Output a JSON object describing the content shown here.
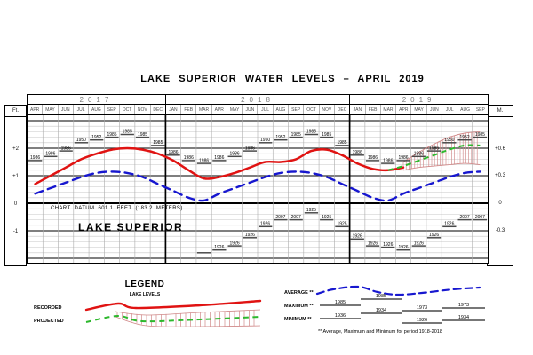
{
  "title": "LAKE SUPERIOR WATER LEVELS – APRIL 2019",
  "axes": {
    "left_unit": "Ft.",
    "right_unit": "M.",
    "left_ticks": [
      {
        "label": "+2",
        "ft": 2
      },
      {
        "label": "+1",
        "ft": 1
      },
      {
        "label": "0",
        "ft": 0
      },
      {
        "label": "-1",
        "ft": -1
      }
    ],
    "right_ticks": [
      {
        "label": "+0.6",
        "m": 0.6
      },
      {
        "label": "+0.3",
        "m": 0.3
      },
      {
        "label": "0",
        "m": 0
      },
      {
        "label": "-0.3",
        "m": -0.3
      }
    ]
  },
  "header": {
    "years": [
      {
        "label": "2017",
        "months": [
          "APR",
          "MAY",
          "JUN",
          "JUL",
          "AUG",
          "SEP",
          "OCT",
          "NOV",
          "DEC"
        ]
      },
      {
        "label": "2018",
        "months": [
          "JAN",
          "FEB",
          "MAR",
          "APR",
          "MAY",
          "JUN",
          "JUL",
          "AUG",
          "SEP",
          "OCT",
          "NOV",
          "DEC"
        ]
      },
      {
        "label": "2019",
        "months": [
          "JAN",
          "FEB",
          "MAR",
          "APR",
          "MAY",
          "JUN",
          "JUL",
          "AUG",
          "SEP"
        ]
      }
    ]
  },
  "annotations": {
    "chart_datum": "CHART DATUM  601.1 FEET (183.2 METERS)",
    "lake_name": "LAKE SUPERIOR"
  },
  "legend": {
    "title": "LEGEND",
    "subtitle": "LAKE LEVELS",
    "recorded_label": "RECORDED",
    "projected_label": "PROJECTED",
    "average_label": "AVERAGE **",
    "maximum_label": "MAXIMUM **",
    "minimum_label": "MINIMUM **",
    "maximum_years": [
      "1985",
      "1985",
      "1973",
      "1973"
    ],
    "minimum_years": [
      "1936",
      "1934",
      "1926",
      "1934"
    ],
    "footnote": "** Average, Maximum and Minimum for period 1918-2018"
  },
  "colors": {
    "recorded": "#e01312",
    "average": "#1717cf",
    "projected": "#2db82d",
    "hatch": "#d08888",
    "steps": "#4a4a4a"
  },
  "chart_data": {
    "type": "line",
    "title": "LAKE SUPERIOR WATER LEVELS – APRIL 2019",
    "ylabel_left": "Ft.",
    "ylabel_right": "M.",
    "ylim_ft": [
      -2.2,
      3.2
    ],
    "categories": [
      "APR 2017",
      "MAY 2017",
      "JUN 2017",
      "JUL 2017",
      "AUG 2017",
      "SEP 2017",
      "OCT 2017",
      "NOV 2017",
      "DEC 2017",
      "JAN 2018",
      "FEB 2018",
      "MAR 2018",
      "APR 2018",
      "MAY 2018",
      "JUN 2018",
      "JUL 2018",
      "AUG 2018",
      "SEP 2018",
      "OCT 2018",
      "NOV 2018",
      "DEC 2018",
      "JAN 2019",
      "FEB 2019",
      "MAR 2019",
      "APR 2019",
      "MAY 2019",
      "JUN 2019",
      "JUL 2019",
      "AUG 2019",
      "SEP 2019"
    ],
    "series": [
      {
        "name": "RECORDED",
        "color_key": "recorded",
        "values": [
          0.7,
          1.0,
          1.3,
          1.6,
          1.8,
          1.95,
          2.0,
          1.95,
          1.8,
          1.55,
          1.2,
          0.9,
          0.95,
          1.1,
          1.3,
          1.5,
          1.5,
          1.6,
          1.9,
          1.95,
          1.75,
          1.45,
          1.25,
          1.2,
          1.3,
          null,
          null,
          null,
          null,
          null
        ]
      },
      {
        "name": "AVERAGE",
        "color_key": "average",
        "values": [
          0.35,
          0.55,
          0.75,
          0.95,
          1.1,
          1.15,
          1.1,
          0.95,
          0.7,
          0.45,
          0.2,
          0.1,
          0.35,
          0.55,
          0.75,
          0.95,
          1.1,
          1.15,
          1.1,
          0.95,
          0.7,
          0.45,
          0.2,
          0.1,
          0.35,
          0.55,
          0.75,
          0.95,
          1.1,
          1.15
        ]
      },
      {
        "name": "PROJECTED",
        "color_key": "projected",
        "values": [
          null,
          null,
          null,
          null,
          null,
          null,
          null,
          null,
          null,
          null,
          null,
          null,
          null,
          null,
          null,
          null,
          null,
          null,
          null,
          null,
          null,
          null,
          null,
          1.2,
          1.35,
          1.55,
          1.75,
          1.95,
          2.1,
          2.1
        ]
      }
    ],
    "projection_band": {
      "start_index": 24,
      "upper": [
        1.5,
        1.85,
        2.15,
        2.4,
        2.55,
        2.6
      ],
      "lower": [
        1.2,
        1.3,
        1.35,
        1.4,
        1.45,
        1.4
      ]
    },
    "max_steps": [
      {
        "year": "1986",
        "ft": 1.55
      },
      {
        "year": "1986",
        "ft": 1.7
      },
      {
        "year": "1986",
        "ft": 1.9
      },
      {
        "year": "1950",
        "ft": 2.2
      },
      {
        "year": "1952",
        "ft": 2.3
      },
      {
        "year": "1985",
        "ft": 2.4
      },
      {
        "year": "1985",
        "ft": 2.5
      },
      {
        "year": "1985",
        "ft": 2.4
      },
      {
        "year": "1985",
        "ft": 2.1
      },
      {
        "year": "1986",
        "ft": 1.75
      },
      {
        "year": "1986",
        "ft": 1.55
      },
      {
        "year": "1986",
        "ft": 1.45
      },
      {
        "year": "1986",
        "ft": 1.55
      },
      {
        "year": "1986",
        "ft": 1.7
      },
      {
        "year": "1986",
        "ft": 1.9
      },
      {
        "year": "1950",
        "ft": 2.2
      },
      {
        "year": "1952",
        "ft": 2.3
      },
      {
        "year": "1985",
        "ft": 2.4
      },
      {
        "year": "1985",
        "ft": 2.5
      },
      {
        "year": "1985",
        "ft": 2.4
      },
      {
        "year": "1985",
        "ft": 2.1
      },
      {
        "year": "1986",
        "ft": 1.75
      },
      {
        "year": "1986",
        "ft": 1.55
      },
      {
        "year": "1986",
        "ft": 1.45
      },
      {
        "year": "1986",
        "ft": 1.55
      },
      {
        "year": "1986",
        "ft": 1.7
      },
      {
        "year": "1986",
        "ft": 1.9
      },
      {
        "year": "1950",
        "ft": 2.2
      },
      {
        "year": "1952",
        "ft": 2.3
      },
      {
        "year": "1985",
        "ft": 2.4
      }
    ],
    "min_steps": [
      null,
      null,
      null,
      null,
      null,
      null,
      null,
      null,
      null,
      null,
      null,
      {
        "year": "",
        "ft": -1.8
      },
      {
        "year": "1926",
        "ft": -1.7
      },
      {
        "year": "1926",
        "ft": -1.55
      },
      {
        "year": "1926",
        "ft": -1.25
      },
      {
        "year": "1926",
        "ft": -0.85
      },
      {
        "year": "2007",
        "ft": -0.6
      },
      {
        "year": "2007",
        "ft": -0.6
      },
      {
        "year": "1925",
        "ft": -0.35
      },
      {
        "year": "1925",
        "ft": -0.6
      },
      {
        "year": "1925",
        "ft": -0.85
      },
      {
        "year": "1926",
        "ft": -1.3
      },
      {
        "year": "1926",
        "ft": -1.55
      },
      {
        "year": "1926",
        "ft": -1.6
      },
      {
        "year": "1926",
        "ft": -1.7
      },
      {
        "year": "1926",
        "ft": -1.55
      },
      {
        "year": "1926",
        "ft": -1.25
      },
      {
        "year": "1926",
        "ft": -0.85
      },
      {
        "year": "2007",
        "ft": -0.6
      },
      {
        "year": "2007",
        "ft": -0.6
      }
    ]
  }
}
